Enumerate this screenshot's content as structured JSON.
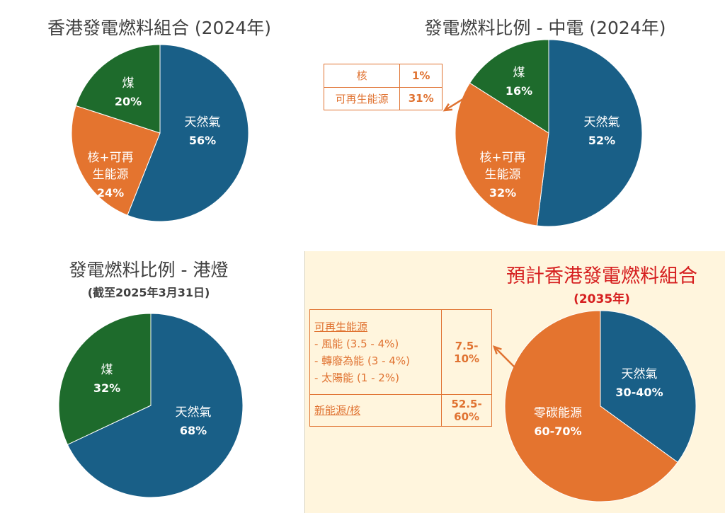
{
  "colors": {
    "gas": "#195f87",
    "nuclear_renewable": "#e4742f",
    "coal": "#1e6b2c",
    "accent_red": "#d61f1f",
    "callout": "#e07332",
    "highlight_bg": "#fff5dd"
  },
  "chart_data": [
    {
      "type": "pie",
      "title": "香港發電燃料組合 (2024年)",
      "slices": [
        {
          "label": "天然氣",
          "value": 56,
          "pct_text": "56%",
          "color": "#195f87"
        },
        {
          "label": "核+可再生能源",
          "value": 24,
          "pct_text": "24%",
          "color": "#e4742f"
        },
        {
          "label": "煤",
          "value": 20,
          "pct_text": "20%",
          "color": "#1e6b2c"
        }
      ]
    },
    {
      "type": "pie",
      "title": "發電燃料比例 - 中電 (2024年)",
      "slices": [
        {
          "label": "天然氣",
          "value": 52,
          "pct_text": "52%",
          "color": "#195f87"
        },
        {
          "label": "核+可再生能源",
          "value": 32,
          "pct_text": "32%",
          "color": "#e4742f"
        },
        {
          "label": "煤",
          "value": 16,
          "pct_text": "16%",
          "color": "#1e6b2c"
        }
      ],
      "callout": [
        {
          "label": "核",
          "value": "1%"
        },
        {
          "label": "可再生能源",
          "value": "31%"
        }
      ]
    },
    {
      "type": "pie",
      "title": "發電燃料比例 - 港燈",
      "subtitle": "(截至2025年3月31日)",
      "slices": [
        {
          "label": "天然氣",
          "value": 68,
          "pct_text": "68%",
          "color": "#195f87"
        },
        {
          "label": "煤",
          "value": 32,
          "pct_text": "32%",
          "color": "#1e6b2c"
        }
      ]
    },
    {
      "type": "pie",
      "title": "預計香港發電燃料組合",
      "subtitle": "(2035年)",
      "slices": [
        {
          "label": "天然氣",
          "value": 35,
          "pct_text": "30-40%",
          "color": "#195f87"
        },
        {
          "label": "零碳能源",
          "value": 65,
          "pct_text": "60-70%",
          "color": "#e4742f"
        }
      ],
      "callout": [
        {
          "label": "可再生能源",
          "value": "7.5-10%"
        },
        {
          "label": "- 風能 (3.5 - 4%)"
        },
        {
          "label": "- 轉廢為能 (3 - 4%)"
        },
        {
          "label": "- 太陽能 (1 - 2%)"
        },
        {
          "label": "新能源/核",
          "value": "52.5-60%"
        }
      ]
    }
  ],
  "labels": {
    "c1_title": "香港發電燃料組合 (2024年)",
    "c2_title": "發電燃料比例 - 中電 (2024年)",
    "c3_title": "發電燃料比例 - 港燈",
    "c3_subtitle": "(截至2025年3月31日)",
    "c4_title": "預計香港發電燃料組合",
    "c4_subtitle": "(2035年)",
    "c2_callout_row1_label": "核",
    "c2_callout_row1_value": "1%",
    "c2_callout_row2_label": "可再生能源",
    "c2_callout_row2_value": "31%",
    "c4_callout_renew": "可再生能源",
    "c4_callout_wind": "- 風能 (3.5 - 4%)",
    "c4_callout_waste": "- 轉廢為能 (3 - 4%)",
    "c4_callout_solar": "- 太陽能 (1 - 2%)",
    "c4_callout_renew_value_a": "7.5-",
    "c4_callout_renew_value_b": "10%",
    "c4_callout_new": "新能源/核",
    "c4_callout_new_value_a": "52.5-",
    "c4_callout_new_value_b": "60%"
  }
}
